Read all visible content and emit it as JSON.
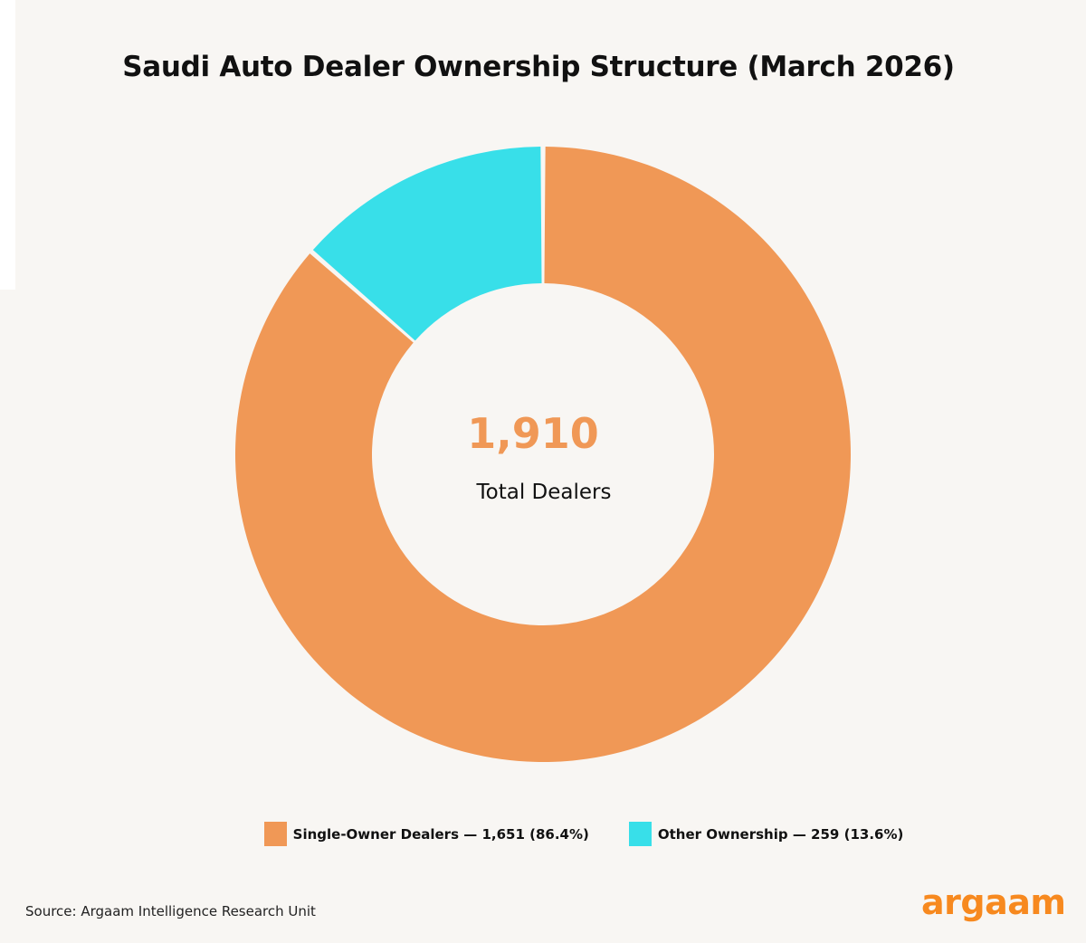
{
  "header": {
    "title": "Saudi Auto Dealer Ownership Structure (March 2026)"
  },
  "center": {
    "total": "1,910",
    "label": "Total Dealers"
  },
  "legend": {
    "items": [
      {
        "label": "Single-Owner Dealers — 1,651 (86.4%)",
        "color": "#f09856"
      },
      {
        "label": "Other Ownership — 259 (13.6%)",
        "color": "#38dfe9"
      }
    ]
  },
  "footer": {
    "source": "Source: Argaam Intelligence Research Unit",
    "logo_text": "argaam",
    "logo_color": "#f7891f"
  },
  "chart_data": {
    "type": "pie",
    "donut": true,
    "title": "Saudi Auto Dealer Ownership Structure (March 2026)",
    "series": [
      {
        "name": "Single-Owner Dealers",
        "value": 1651,
        "percent": 86.4,
        "color": "#f09856"
      },
      {
        "name": "Other Ownership",
        "value": 259,
        "percent": 13.6,
        "color": "#38dfe9"
      }
    ],
    "total": 1910,
    "center_text_color": "#f09856",
    "legend_position": "bottom"
  }
}
